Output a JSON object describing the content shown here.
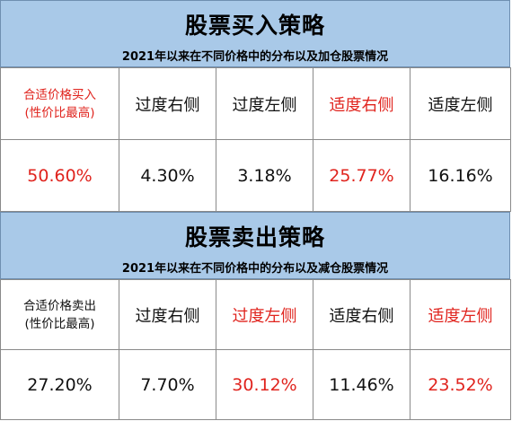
{
  "buy": {
    "title": "股票买入策略",
    "subtitle": "2021年以来在不同价格中的分布以及加仓股票情况",
    "headers": [
      {
        "line1": "合适价格买入",
        "line2": "(性价比最高)"
      },
      {
        "label": "过度右侧"
      },
      {
        "label": "过度左侧"
      },
      {
        "label": "适度右侧"
      },
      {
        "label": "适度左侧"
      }
    ],
    "values": [
      "50.60%",
      "4.30%",
      "3.18%",
      "25.77%",
      "16.16%"
    ]
  },
  "sell": {
    "title": "股票卖出策略",
    "subtitle": "2021年以来在不同价格中的分布以及减仓股票情况",
    "headers": [
      {
        "line1": "合适价格卖出",
        "line2": "(性价比最高)"
      },
      {
        "label": "过度右侧"
      },
      {
        "label": "过度左侧"
      },
      {
        "label": "适度右侧"
      },
      {
        "label": "适度左侧"
      }
    ],
    "values": [
      "27.20%",
      "7.70%",
      "30.12%",
      "11.46%",
      "23.52%"
    ]
  },
  "colors": {
    "highlight": "#e0241e",
    "banner": "#a9c9e8",
    "text": "#111111"
  }
}
